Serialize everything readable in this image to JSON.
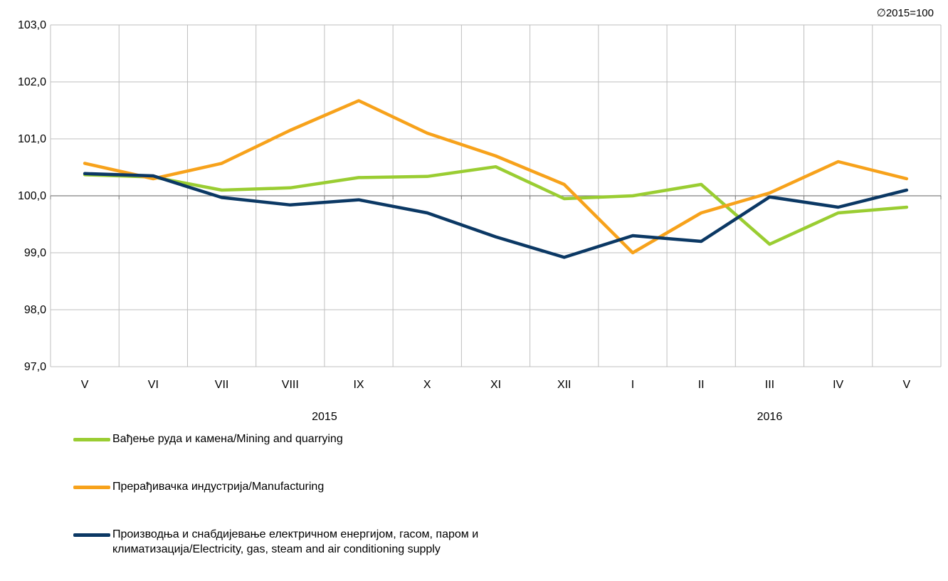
{
  "note": "∅2015=100",
  "chart_data": {
    "type": "line",
    "categories": [
      "V",
      "VI",
      "VII",
      "VIII",
      "IX",
      "X",
      "XI",
      "XII",
      "I",
      "II",
      "III",
      "IV",
      "V"
    ],
    "year_labels": [
      {
        "label": "2015",
        "from": 0,
        "to": 7
      },
      {
        "label": "2016",
        "from": 8,
        "to": 12
      }
    ],
    "ylim": [
      97.0,
      103.0
    ],
    "yticks": [
      "97,0",
      "98,0",
      "99,0",
      "100,0",
      "101,0",
      "102,0",
      "103,0"
    ],
    "reference_line": 100.0,
    "grid": true,
    "legend_position": "bottom-left",
    "series": [
      {
        "name": "Вађење руда и камена/Mining and quarrying",
        "color": "#9ACD32",
        "values": [
          100.37,
          100.33,
          100.1,
          100.14,
          100.32,
          100.34,
          100.51,
          99.95,
          100.0,
          100.2,
          99.15,
          99.7,
          99.8
        ]
      },
      {
        "name": "Прерађивачка индустрија/Manufacturing",
        "color": "#F7A21B",
        "values": [
          100.57,
          100.3,
          100.57,
          101.15,
          101.67,
          101.1,
          100.7,
          100.2,
          99.0,
          99.7,
          100.05,
          100.6,
          100.3
        ]
      },
      {
        "name": "Производња и снабдијевање електричном енергијом, гасом, паром и климатизација/Electricity, gas, steam and air conditioning supply",
        "color": "#0B3864",
        "values": [
          100.39,
          100.35,
          99.97,
          99.84,
          99.93,
          99.7,
          99.28,
          98.92,
          99.3,
          99.2,
          99.98,
          99.8,
          100.1
        ]
      }
    ]
  }
}
